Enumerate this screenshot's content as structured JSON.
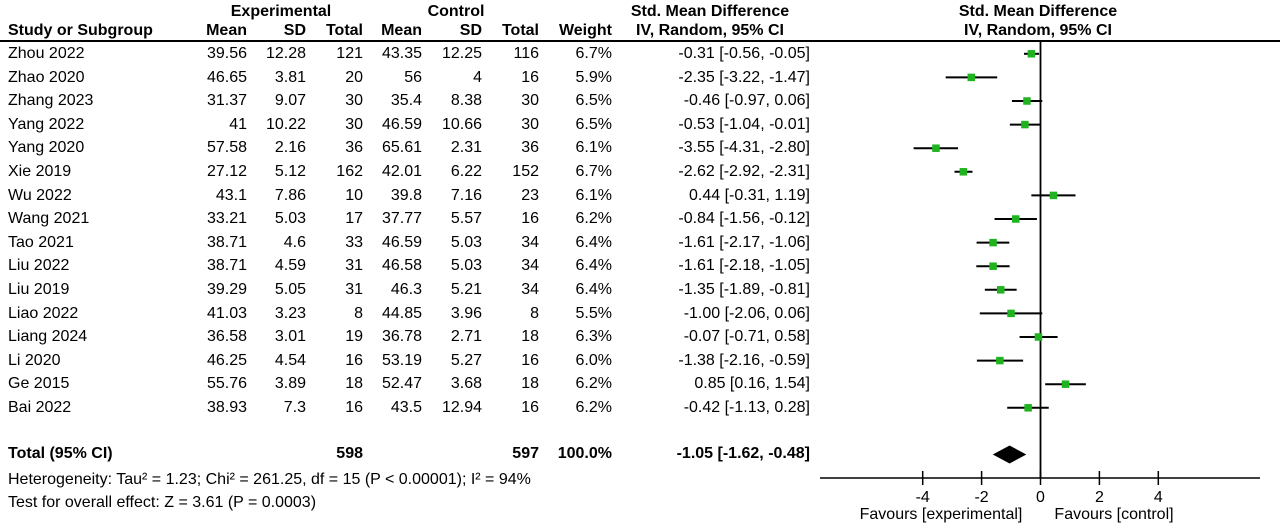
{
  "header": {
    "group_experimental": "Experimental",
    "group_control": "Control",
    "smd_left_line1": "Std. Mean Difference",
    "smd_left_line2": "IV, Random, 95% CI",
    "smd_right_line1": "Std. Mean Difference",
    "smd_right_line2": "IV, Random, 95% CI",
    "col_study": "Study or Subgroup",
    "col_mean1": "Mean",
    "col_sd1": "SD",
    "col_total1": "Total",
    "col_mean2": "Mean",
    "col_sd2": "SD",
    "col_total2": "Total",
    "col_weight": "Weight"
  },
  "chart_data": {
    "type": "forest",
    "effect_measure": "Std. Mean Difference",
    "model": "IV, Random, 95% CI",
    "marker_color": "#1fb41f",
    "line_color": "#000000",
    "studies": [
      {
        "study": "Zhou 2022",
        "mean_e": "39.56",
        "sd_e": "12.28",
        "total_e": "121",
        "mean_c": "43.35",
        "sd_c": "12.25",
        "total_c": "116",
        "weight": "6.7%",
        "ci_text": "-0.31 [-0.56, -0.05]",
        "effect": -0.31,
        "lo": -0.56,
        "hi": -0.05
      },
      {
        "study": "Zhao 2020",
        "mean_e": "46.65",
        "sd_e": "3.81",
        "total_e": "20",
        "mean_c": "56",
        "sd_c": "4",
        "total_c": "16",
        "weight": "5.9%",
        "ci_text": "-2.35 [-3.22, -1.47]",
        "effect": -2.35,
        "lo": -3.22,
        "hi": -1.47
      },
      {
        "study": "Zhang 2023",
        "mean_e": "31.37",
        "sd_e": "9.07",
        "total_e": "30",
        "mean_c": "35.4",
        "sd_c": "8.38",
        "total_c": "30",
        "weight": "6.5%",
        "ci_text": "-0.46 [-0.97, 0.06]",
        "effect": -0.46,
        "lo": -0.97,
        "hi": 0.06
      },
      {
        "study": "Yang 2022",
        "mean_e": "41",
        "sd_e": "10.22",
        "total_e": "30",
        "mean_c": "46.59",
        "sd_c": "10.66",
        "total_c": "30",
        "weight": "6.5%",
        "ci_text": "-0.53 [-1.04, -0.01]",
        "effect": -0.53,
        "lo": -1.04,
        "hi": -0.01
      },
      {
        "study": "Yang 2020",
        "mean_e": "57.58",
        "sd_e": "2.16",
        "total_e": "36",
        "mean_c": "65.61",
        "sd_c": "2.31",
        "total_c": "36",
        "weight": "6.1%",
        "ci_text": "-3.55 [-4.31, -2.80]",
        "effect": -3.55,
        "lo": -4.31,
        "hi": -2.8
      },
      {
        "study": "Xie 2019",
        "mean_e": "27.12",
        "sd_e": "5.12",
        "total_e": "162",
        "mean_c": "42.01",
        "sd_c": "6.22",
        "total_c": "152",
        "weight": "6.7%",
        "ci_text": "-2.62 [-2.92, -2.31]",
        "effect": -2.62,
        "lo": -2.92,
        "hi": -2.31
      },
      {
        "study": "Wu 2022",
        "mean_e": "43.1",
        "sd_e": "7.86",
        "total_e": "10",
        "mean_c": "39.8",
        "sd_c": "7.16",
        "total_c": "23",
        "weight": "6.1%",
        "ci_text": "0.44 [-0.31, 1.19]",
        "effect": 0.44,
        "lo": -0.31,
        "hi": 1.19
      },
      {
        "study": "Wang 2021",
        "mean_e": "33.21",
        "sd_e": "5.03",
        "total_e": "17",
        "mean_c": "37.77",
        "sd_c": "5.57",
        "total_c": "16",
        "weight": "6.2%",
        "ci_text": "-0.84 [-1.56, -0.12]",
        "effect": -0.84,
        "lo": -1.56,
        "hi": -0.12
      },
      {
        "study": "Tao 2021",
        "mean_e": "38.71",
        "sd_e": "4.6",
        "total_e": "33",
        "mean_c": "46.59",
        "sd_c": "5.03",
        "total_c": "34",
        "weight": "6.4%",
        "ci_text": "-1.61 [-2.17, -1.06]",
        "effect": -1.61,
        "lo": -2.17,
        "hi": -1.06
      },
      {
        "study": "Liu 2022",
        "mean_e": "38.71",
        "sd_e": "4.59",
        "total_e": "31",
        "mean_c": "46.58",
        "sd_c": "5.03",
        "total_c": "34",
        "weight": "6.4%",
        "ci_text": "-1.61 [-2.18, -1.05]",
        "effect": -1.61,
        "lo": -2.18,
        "hi": -1.05
      },
      {
        "study": "Liu 2019",
        "mean_e": "39.29",
        "sd_e": "5.05",
        "total_e": "31",
        "mean_c": "46.3",
        "sd_c": "5.21",
        "total_c": "34",
        "weight": "6.4%",
        "ci_text": "-1.35 [-1.89, -0.81]",
        "effect": -1.35,
        "lo": -1.89,
        "hi": -0.81
      },
      {
        "study": "Liao 2022",
        "mean_e": "41.03",
        "sd_e": "3.23",
        "total_e": "8",
        "mean_c": "44.85",
        "sd_c": "3.96",
        "total_c": "8",
        "weight": "5.5%",
        "ci_text": "-1.00 [-2.06, 0.06]",
        "effect": -1.0,
        "lo": -2.06,
        "hi": 0.06
      },
      {
        "study": "Liang 2024",
        "mean_e": "36.58",
        "sd_e": "3.01",
        "total_e": "19",
        "mean_c": "36.78",
        "sd_c": "2.71",
        "total_c": "18",
        "weight": "6.3%",
        "ci_text": "-0.07 [-0.71, 0.58]",
        "effect": -0.07,
        "lo": -0.71,
        "hi": 0.58
      },
      {
        "study": "Li 2020",
        "mean_e": "46.25",
        "sd_e": "4.54",
        "total_e": "16",
        "mean_c": "53.19",
        "sd_c": "5.27",
        "total_c": "16",
        "weight": "6.0%",
        "ci_text": "-1.38 [-2.16, -0.59]",
        "effect": -1.38,
        "lo": -2.16,
        "hi": -0.59
      },
      {
        "study": "Ge 2015",
        "mean_e": "55.76",
        "sd_e": "3.89",
        "total_e": "18",
        "mean_c": "52.47",
        "sd_c": "3.68",
        "total_c": "18",
        "weight": "6.2%",
        "ci_text": "0.85 [0.16, 1.54]",
        "effect": 0.85,
        "lo": 0.16,
        "hi": 1.54
      },
      {
        "study": "Bai 2022",
        "mean_e": "38.93",
        "sd_e": "7.3",
        "total_e": "16",
        "mean_c": "43.5",
        "sd_c": "12.94",
        "total_c": "16",
        "weight": "6.2%",
        "ci_text": "-0.42 [-1.13, 0.28]",
        "effect": -0.42,
        "lo": -1.13,
        "hi": 0.28
      }
    ],
    "total": {
      "label": "Total (95% CI)",
      "total_e": "598",
      "total_c": "597",
      "weight": "100.0%",
      "ci_text": "-1.05 [-1.62, -0.48]",
      "effect": -1.05,
      "lo": -1.62,
      "hi": -0.48
    },
    "axis": {
      "ticks": [
        "-4",
        "-2",
        "0",
        "2",
        "4"
      ],
      "tick_values": [
        -4,
        -2,
        0,
        2,
        4
      ],
      "xmin": -7.5,
      "xmax": 7.5
    },
    "favours_left": "Favours [experimental]",
    "favours_right": "Favours [control]",
    "footnotes": {
      "heterogeneity": "Heterogeneity: Tau² = 1.23; Chi² = 261.25, df = 15 (P < 0.00001); I² = 94%",
      "overall_effect": "Test for overall effect: Z = 3.61 (P = 0.0003)"
    }
  }
}
